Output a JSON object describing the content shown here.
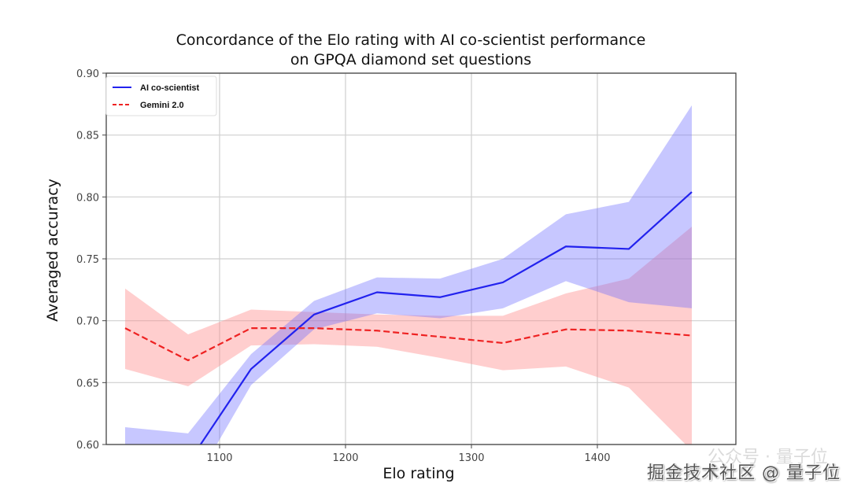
{
  "chart_data": {
    "type": "line",
    "title": [
      "Concordance of the Elo rating with AI co-scientist performance",
      "on GPQA diamond set questions"
    ],
    "xlabel": "Elo rating",
    "ylabel": "Averaged accuracy",
    "xlim": [
      1010,
      1510
    ],
    "ylim": [
      0.6,
      0.9
    ],
    "xticks": [
      1100,
      1200,
      1300,
      1400
    ],
    "xtick_labels": [
      "1100",
      "1200",
      "1300",
      "1400"
    ],
    "yticks": [
      0.6,
      0.65,
      0.7,
      0.75,
      0.8,
      0.85,
      0.9
    ],
    "ytick_labels": [
      "0.60",
      "0.65",
      "0.70",
      "0.75",
      "0.80",
      "0.85",
      "0.90"
    ],
    "grid": true,
    "legend": "top-left",
    "x": [
      1025,
      1075,
      1125,
      1175,
      1225,
      1275,
      1325,
      1375,
      1425,
      1475
    ],
    "series": [
      {
        "name": "AI co-scientist",
        "color": "#2222ee",
        "band_color": "#6b6bff",
        "style": "solid",
        "values": [
          0.59,
          0.585,
          0.661,
          0.705,
          0.723,
          0.719,
          0.731,
          0.76,
          0.758,
          0.804
        ],
        "upper": [
          0.614,
          0.609,
          0.673,
          0.716,
          0.735,
          0.734,
          0.75,
          0.786,
          0.796,
          0.874
        ],
        "lower": [
          0.56,
          0.56,
          0.648,
          0.693,
          0.706,
          0.702,
          0.71,
          0.732,
          0.715,
          0.71
        ]
      },
      {
        "name": "Gemini 2.0",
        "color": "#ee2222",
        "band_color": "#ff8a8a",
        "style": "dashed",
        "values": [
          0.694,
          0.668,
          0.694,
          0.694,
          0.692,
          0.687,
          0.682,
          0.693,
          0.692,
          0.688
        ],
        "upper": [
          0.726,
          0.689,
          0.709,
          0.707,
          0.705,
          0.704,
          0.704,
          0.722,
          0.734,
          0.776
        ],
        "lower": [
          0.661,
          0.647,
          0.68,
          0.681,
          0.679,
          0.67,
          0.66,
          0.663,
          0.646,
          0.595
        ]
      }
    ]
  },
  "watermark": {
    "text": "掘金技术社区 @ 量子位",
    "faint_text": "公众号 · 量子位"
  }
}
